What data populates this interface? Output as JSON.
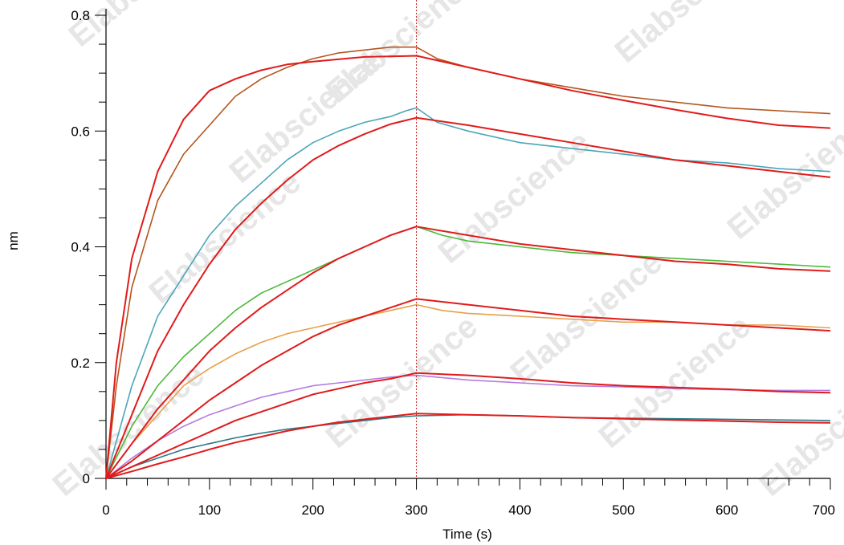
{
  "chart_data": {
    "type": "line",
    "title": "",
    "xlabel": "Time (s)",
    "ylabel": "nm",
    "xlim": [
      0,
      700
    ],
    "ylim": [
      0,
      0.8
    ],
    "x_ticks": [
      0,
      100,
      200,
      300,
      400,
      500,
      600,
      700
    ],
    "x_tick_labels": [
      "0",
      "100",
      "200",
      "300",
      "400",
      "500",
      "600",
      "700"
    ],
    "y_ticks": [
      0,
      0.2,
      0.4,
      0.6,
      0.8
    ],
    "y_tick_labels": [
      "0",
      "0.2",
      "0.4",
      "0.6",
      "0.8"
    ],
    "dissociation_start": 300,
    "watermark": "Elabscience",
    "series": [
      {
        "color": "#b5551c",
        "kind": "measured",
        "points": [
          [
            0,
            0
          ],
          [
            10,
            0.16
          ],
          [
            25,
            0.33
          ],
          [
            50,
            0.48
          ],
          [
            75,
            0.56
          ],
          [
            100,
            0.61
          ],
          [
            125,
            0.66
          ],
          [
            150,
            0.69
          ],
          [
            175,
            0.71
          ],
          [
            200,
            0.725
          ],
          [
            225,
            0.735
          ],
          [
            250,
            0.74
          ],
          [
            275,
            0.745
          ],
          [
            300,
            0.745
          ],
          [
            320,
            0.725
          ],
          [
            350,
            0.71
          ],
          [
            400,
            0.69
          ],
          [
            450,
            0.675
          ],
          [
            500,
            0.66
          ],
          [
            550,
            0.65
          ],
          [
            600,
            0.64
          ],
          [
            650,
            0.635
          ],
          [
            700,
            0.63
          ]
        ]
      },
      {
        "color": "#e01b1b",
        "kind": "fit",
        "points": [
          [
            0,
            0
          ],
          [
            10,
            0.2
          ],
          [
            25,
            0.38
          ],
          [
            50,
            0.53
          ],
          [
            75,
            0.62
          ],
          [
            100,
            0.67
          ],
          [
            125,
            0.69
          ],
          [
            150,
            0.705
          ],
          [
            175,
            0.715
          ],
          [
            200,
            0.72
          ],
          [
            250,
            0.728
          ],
          [
            300,
            0.73
          ],
          [
            350,
            0.71
          ],
          [
            400,
            0.69
          ],
          [
            450,
            0.67
          ],
          [
            500,
            0.653
          ],
          [
            550,
            0.637
          ],
          [
            600,
            0.622
          ],
          [
            650,
            0.61
          ],
          [
            700,
            0.605
          ]
        ]
      },
      {
        "color": "#4aa6b8",
        "kind": "measured",
        "points": [
          [
            0,
            0
          ],
          [
            25,
            0.16
          ],
          [
            50,
            0.28
          ],
          [
            75,
            0.35
          ],
          [
            100,
            0.42
          ],
          [
            125,
            0.47
          ],
          [
            150,
            0.51
          ],
          [
            175,
            0.55
          ],
          [
            200,
            0.58
          ],
          [
            225,
            0.6
          ],
          [
            250,
            0.615
          ],
          [
            275,
            0.625
          ],
          [
            290,
            0.635
          ],
          [
            300,
            0.64
          ],
          [
            320,
            0.615
          ],
          [
            350,
            0.6
          ],
          [
            400,
            0.58
          ],
          [
            450,
            0.57
          ],
          [
            500,
            0.56
          ],
          [
            550,
            0.55
          ],
          [
            600,
            0.545
          ],
          [
            650,
            0.535
          ],
          [
            700,
            0.53
          ]
        ]
      },
      {
        "color": "#e01b1b",
        "kind": "fit",
        "points": [
          [
            0,
            0
          ],
          [
            25,
            0.11
          ],
          [
            50,
            0.22
          ],
          [
            75,
            0.3
          ],
          [
            100,
            0.37
          ],
          [
            125,
            0.43
          ],
          [
            150,
            0.475
          ],
          [
            175,
            0.515
          ],
          [
            200,
            0.55
          ],
          [
            225,
            0.575
          ],
          [
            250,
            0.595
          ],
          [
            275,
            0.612
          ],
          [
            300,
            0.623
          ],
          [
            350,
            0.61
          ],
          [
            400,
            0.595
          ],
          [
            450,
            0.58
          ],
          [
            500,
            0.565
          ],
          [
            550,
            0.55
          ],
          [
            600,
            0.54
          ],
          [
            650,
            0.53
          ],
          [
            700,
            0.52
          ]
        ]
      },
      {
        "color": "#4cb83a",
        "kind": "measured",
        "points": [
          [
            0,
            0
          ],
          [
            25,
            0.09
          ],
          [
            50,
            0.16
          ],
          [
            75,
            0.21
          ],
          [
            100,
            0.25
          ],
          [
            125,
            0.29
          ],
          [
            150,
            0.32
          ],
          [
            175,
            0.34
          ],
          [
            200,
            0.36
          ],
          [
            225,
            0.38
          ],
          [
            250,
            0.4
          ],
          [
            275,
            0.42
          ],
          [
            300,
            0.435
          ],
          [
            325,
            0.42
          ],
          [
            350,
            0.41
          ],
          [
            400,
            0.4
          ],
          [
            450,
            0.39
          ],
          [
            500,
            0.385
          ],
          [
            550,
            0.38
          ],
          [
            600,
            0.375
          ],
          [
            650,
            0.37
          ],
          [
            700,
            0.365
          ]
        ]
      },
      {
        "color": "#e01b1b",
        "kind": "fit",
        "points": [
          [
            0,
            0
          ],
          [
            25,
            0.06
          ],
          [
            50,
            0.12
          ],
          [
            75,
            0.17
          ],
          [
            100,
            0.22
          ],
          [
            125,
            0.26
          ],
          [
            150,
            0.295
          ],
          [
            175,
            0.325
          ],
          [
            200,
            0.355
          ],
          [
            225,
            0.38
          ],
          [
            250,
            0.4
          ],
          [
            275,
            0.42
          ],
          [
            300,
            0.435
          ],
          [
            350,
            0.42
          ],
          [
            400,
            0.405
          ],
          [
            450,
            0.395
          ],
          [
            500,
            0.385
          ],
          [
            550,
            0.375
          ],
          [
            600,
            0.37
          ],
          [
            650,
            0.362
          ],
          [
            700,
            0.358
          ]
        ]
      },
      {
        "color": "#e8a04a",
        "kind": "measured",
        "points": [
          [
            0,
            0
          ],
          [
            25,
            0.06
          ],
          [
            50,
            0.11
          ],
          [
            75,
            0.16
          ],
          [
            100,
            0.19
          ],
          [
            125,
            0.215
          ],
          [
            150,
            0.235
          ],
          [
            175,
            0.25
          ],
          [
            200,
            0.26
          ],
          [
            225,
            0.27
          ],
          [
            250,
            0.28
          ],
          [
            275,
            0.29
          ],
          [
            300,
            0.3
          ],
          [
            325,
            0.29
          ],
          [
            350,
            0.285
          ],
          [
            400,
            0.28
          ],
          [
            450,
            0.275
          ],
          [
            500,
            0.27
          ],
          [
            550,
            0.27
          ],
          [
            600,
            0.265
          ],
          [
            650,
            0.265
          ],
          [
            700,
            0.26
          ]
        ]
      },
      {
        "color": "#e01b1b",
        "kind": "fit",
        "points": [
          [
            0,
            0
          ],
          [
            25,
            0.03
          ],
          [
            50,
            0.065
          ],
          [
            75,
            0.1
          ],
          [
            100,
            0.135
          ],
          [
            125,
            0.165
          ],
          [
            150,
            0.195
          ],
          [
            175,
            0.22
          ],
          [
            200,
            0.245
          ],
          [
            225,
            0.265
          ],
          [
            250,
            0.28
          ],
          [
            275,
            0.295
          ],
          [
            300,
            0.31
          ],
          [
            350,
            0.3
          ],
          [
            400,
            0.29
          ],
          [
            450,
            0.28
          ],
          [
            500,
            0.275
          ],
          [
            550,
            0.27
          ],
          [
            600,
            0.265
          ],
          [
            650,
            0.26
          ],
          [
            700,
            0.255
          ]
        ]
      },
      {
        "color": "#b47be0",
        "kind": "measured",
        "points": [
          [
            0,
            0
          ],
          [
            25,
            0.035
          ],
          [
            50,
            0.065
          ],
          [
            75,
            0.09
          ],
          [
            100,
            0.11
          ],
          [
            125,
            0.125
          ],
          [
            150,
            0.14
          ],
          [
            175,
            0.15
          ],
          [
            200,
            0.16
          ],
          [
            225,
            0.165
          ],
          [
            250,
            0.17
          ],
          [
            275,
            0.175
          ],
          [
            300,
            0.178
          ],
          [
            350,
            0.17
          ],
          [
            400,
            0.165
          ],
          [
            450,
            0.16
          ],
          [
            500,
            0.158
          ],
          [
            550,
            0.155
          ],
          [
            600,
            0.153
          ],
          [
            650,
            0.152
          ],
          [
            700,
            0.152
          ]
        ]
      },
      {
        "color": "#e01b1b",
        "kind": "fit",
        "points": [
          [
            0,
            0
          ],
          [
            25,
            0.02
          ],
          [
            50,
            0.04
          ],
          [
            75,
            0.06
          ],
          [
            100,
            0.08
          ],
          [
            125,
            0.1
          ],
          [
            150,
            0.115
          ],
          [
            175,
            0.13
          ],
          [
            200,
            0.145
          ],
          [
            225,
            0.155
          ],
          [
            250,
            0.165
          ],
          [
            275,
            0.172
          ],
          [
            300,
            0.182
          ],
          [
            350,
            0.178
          ],
          [
            400,
            0.172
          ],
          [
            450,
            0.165
          ],
          [
            500,
            0.16
          ],
          [
            550,
            0.157
          ],
          [
            600,
            0.154
          ],
          [
            650,
            0.15
          ],
          [
            700,
            0.148
          ]
        ]
      },
      {
        "color": "#2c7a86",
        "kind": "measured",
        "points": [
          [
            0,
            0
          ],
          [
            25,
            0.02
          ],
          [
            50,
            0.035
          ],
          [
            75,
            0.05
          ],
          [
            100,
            0.06
          ],
          [
            125,
            0.07
          ],
          [
            150,
            0.078
          ],
          [
            175,
            0.085
          ],
          [
            200,
            0.09
          ],
          [
            225,
            0.095
          ],
          [
            250,
            0.1
          ],
          [
            275,
            0.105
          ],
          [
            300,
            0.108
          ],
          [
            350,
            0.11
          ],
          [
            400,
            0.108
          ],
          [
            450,
            0.105
          ],
          [
            500,
            0.104
          ],
          [
            550,
            0.103
          ],
          [
            600,
            0.102
          ],
          [
            650,
            0.101
          ],
          [
            700,
            0.1
          ]
        ]
      },
      {
        "color": "#e01b1b",
        "kind": "fit",
        "points": [
          [
            0,
            0
          ],
          [
            25,
            0.012
          ],
          [
            50,
            0.025
          ],
          [
            75,
            0.037
          ],
          [
            100,
            0.05
          ],
          [
            125,
            0.062
          ],
          [
            150,
            0.072
          ],
          [
            175,
            0.082
          ],
          [
            200,
            0.09
          ],
          [
            225,
            0.097
          ],
          [
            250,
            0.102
          ],
          [
            275,
            0.107
          ],
          [
            300,
            0.112
          ],
          [
            350,
            0.11
          ],
          [
            400,
            0.108
          ],
          [
            450,
            0.105
          ],
          [
            500,
            0.103
          ],
          [
            550,
            0.101
          ],
          [
            600,
            0.099
          ],
          [
            650,
            0.097
          ],
          [
            700,
            0.096
          ]
        ]
      }
    ]
  }
}
